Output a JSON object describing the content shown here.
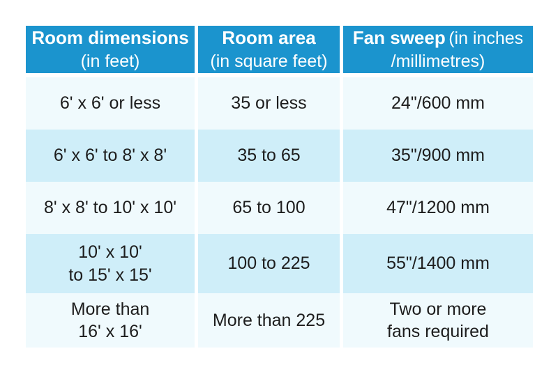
{
  "colors": {
    "page-bg": "#ffffff",
    "header-bg": "#1b94ce",
    "header-text": "#ffffff",
    "row-light": "#f0fafd",
    "row-blue": "#cfeef9",
    "body-text": "#1d1d1d"
  },
  "chart_data": {
    "type": "table",
    "columns": [
      {
        "title": "Room dimensions",
        "subtitle": "(in feet)"
      },
      {
        "title": "Room area",
        "subtitle": "(in square feet)"
      },
      {
        "title": "Fan sweep",
        "subtitle": "(in inches\n/millimetres)"
      }
    ],
    "rows": [
      {
        "cells": [
          "6' x 6' or less",
          "35 or less",
          "24\"/600 mm"
        ]
      },
      {
        "cells": [
          "6' x 6' to 8' x 8'",
          "35 to 65",
          "35\"/900 mm"
        ]
      },
      {
        "cells": [
          "8' x 8' to 10' x 10'",
          "65 to 100",
          "47\"/1200 mm"
        ]
      },
      {
        "cells": [
          "10' x 10'\nto 15' x 15'",
          "100 to 225",
          "55\"/1400 mm"
        ]
      },
      {
        "cells": [
          "More than\n16' x 16'",
          "More than 225",
          "Two or more\nfans required"
        ]
      }
    ]
  }
}
